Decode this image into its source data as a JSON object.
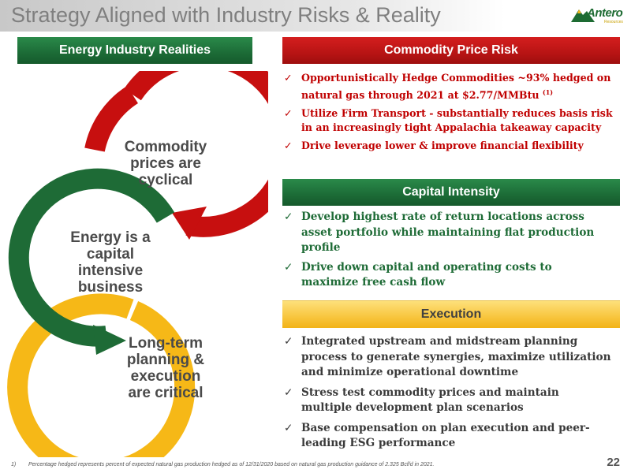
{
  "title": "Strategy Aligned with Industry Risks & Reality",
  "logo": {
    "name": "Antero",
    "sub": "Resources"
  },
  "headers": {
    "realities": "Energy Industry Realities",
    "commodity": "Commodity Price Risk",
    "capital": "Capital Intensity",
    "execution": "Execution"
  },
  "cycle": {
    "top": [
      "Commodity",
      "prices are",
      "cyclical"
    ],
    "middle": [
      "Energy is a",
      "capital",
      "intensive",
      "business"
    ],
    "bottom": [
      "Long-term",
      "planning &",
      "execution",
      "are critical"
    ]
  },
  "commodity_bullets": [
    {
      "text": "Opportunistically Hedge Commodities ~93% hedged on natural gas through 2021  at $2.77/MMBtu ",
      "sup": "(1)"
    },
    {
      "text": "Utilize Firm Transport - substantially reduces basis risk in an increasingly tight Appalachia takeaway capacity"
    },
    {
      "text": "Drive leverage lower & improve financial flexibility"
    }
  ],
  "capital_bullets": [
    {
      "text": "Develop highest rate of return locations across asset portfolio while maintaining flat production profile"
    },
    {
      "text": "Drive down capital and operating costs to maximize free cash flow"
    }
  ],
  "execution_bullets": [
    {
      "text": "Integrated upstream and midstream planning process to generate synergies, maximize utilization and minimize operational downtime"
    },
    {
      "text": "Stress test commodity prices and maintain multiple development plan scenarios"
    },
    {
      "text": "Base compensation on plan execution and peer-leading ESG performance"
    }
  ],
  "check_glyph": "✓",
  "footnote": {
    "num": "1)",
    "text": "Percentage hedged represents percent of expected natural gas production hedged as of 12/31/2020 based on natural gas production guidance of 2.325 Bcf/d in 2021."
  },
  "page_number": "22",
  "colors": {
    "red": "#c00000",
    "green": "#1e6b36",
    "gold": "#f6b817"
  }
}
